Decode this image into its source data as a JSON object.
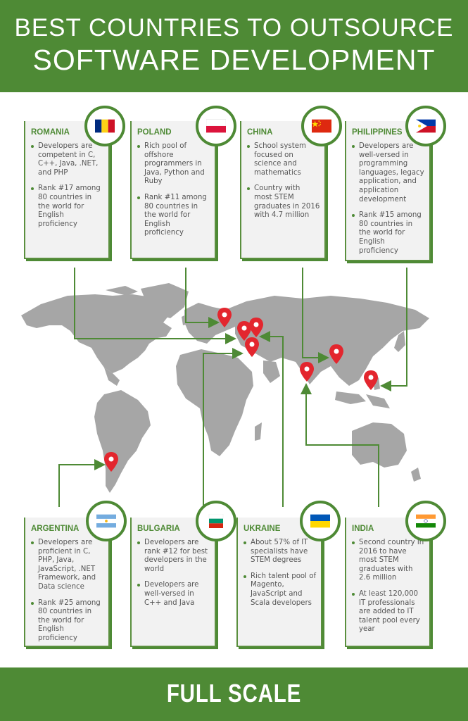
{
  "header": {
    "line1": "BEST COUNTRIES TO OUTSOURCE",
    "line2": "SOFTWARE DEVELOPMENT"
  },
  "countries": [
    {
      "name": "ROMANIA",
      "flag": "romania-flag-icon",
      "points": [
        "Developers are competent in C, C++, Java, .NET, and PHP",
        "Rank #17 among 80 countries in the world for English proficiency"
      ]
    },
    {
      "name": "POLAND",
      "flag": "poland-flag-icon",
      "points": [
        "Rich pool of offshore programmers in Java, Python and Ruby",
        "Rank #11 among 80 countries in the world for English proficiency"
      ]
    },
    {
      "name": "CHINA",
      "flag": "china-flag-icon",
      "points": [
        "School system focused on science and mathematics",
        "Country with most STEM graduates in 2016 with 4.7 million"
      ]
    },
    {
      "name": "PHILIPPINES",
      "flag": "philippines-flag-icon",
      "points": [
        "Developers are well-versed in programming languages, legacy application, and application development",
        "Rank #15 among 80 countries in the world for English proficiency"
      ]
    },
    {
      "name": "ARGENTINA",
      "flag": "argentina-flag-icon",
      "points": [
        "Developers are proficient in C, PHP, Java, JavaScript, .NET Framework, and Data science",
        "Rank #25 among 80 countries in the world for English proficiency"
      ]
    },
    {
      "name": "BULGARIA",
      "flag": "bulgaria-flag-icon",
      "points": [
        "Developers are rank #12 for best developers in the world",
        "Developers are well-versed in C++ and Java"
      ]
    },
    {
      "name": "UKRAINE",
      "flag": "ukraine-flag-icon",
      "points": [
        "About 57% of IT specialists have STEM degrees",
        "Rich talent pool of Magento, JavaScript and Scala developers"
      ]
    },
    {
      "name": "INDIA",
      "flag": "india-flag-icon",
      "points": [
        "Second country in 2016 to have most STEM graduates with 2.6 million",
        "At least 120,000 IT professionals are added to IT talent pool every year"
      ]
    }
  ],
  "footer": {
    "brand": "FULL SCALE"
  },
  "colors": {
    "brand_green": "#4e8a35",
    "pin_red": "#e3262e",
    "map_gray": "#a6a6a6",
    "text_gray": "#555555"
  }
}
